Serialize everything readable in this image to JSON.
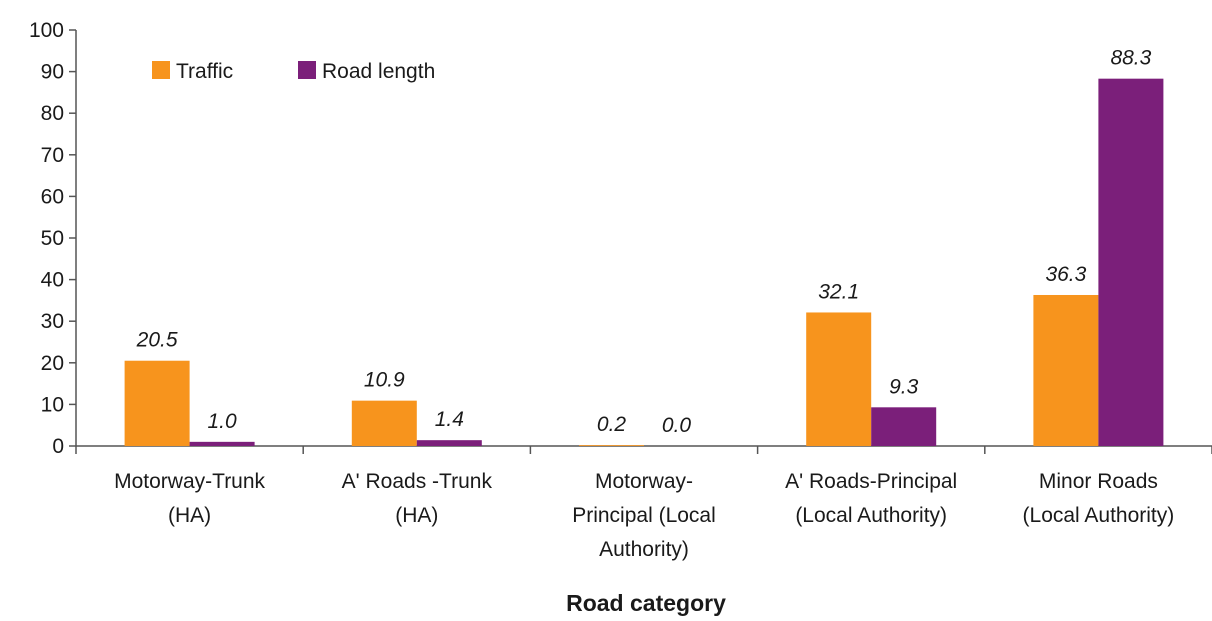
{
  "chart_data": {
    "type": "bar",
    "title": "",
    "xlabel": "Road category",
    "ylabel": "",
    "ylim": [
      0,
      100
    ],
    "yticks": [
      0,
      10,
      20,
      30,
      40,
      50,
      60,
      70,
      80,
      90,
      100
    ],
    "grid": false,
    "legend_position": "top-left",
    "categories": [
      [
        "Motorway-Trunk",
        "(HA)"
      ],
      [
        "A' Roads -Trunk",
        "(HA)"
      ],
      [
        "Motorway-",
        "Principal  (Local",
        "Authority)"
      ],
      [
        "A' Roads-Principal",
        "(Local Authority)"
      ],
      [
        "Minor Roads",
        "(Local Authority)"
      ]
    ],
    "series": [
      {
        "name": "Traffic",
        "color": "#f7941d",
        "values": [
          20.5,
          10.9,
          0.2,
          32.1,
          36.3
        ],
        "labels": [
          "20.5",
          "10.9",
          "0.2",
          "32.1",
          "36.3"
        ]
      },
      {
        "name": "Road length",
        "color": "#7b1f7a",
        "values": [
          1.0,
          1.4,
          0.0,
          9.3,
          88.3
        ],
        "labels": [
          "1.0",
          "1.4",
          "0.0",
          "9.3",
          "88.3"
        ]
      }
    ]
  }
}
